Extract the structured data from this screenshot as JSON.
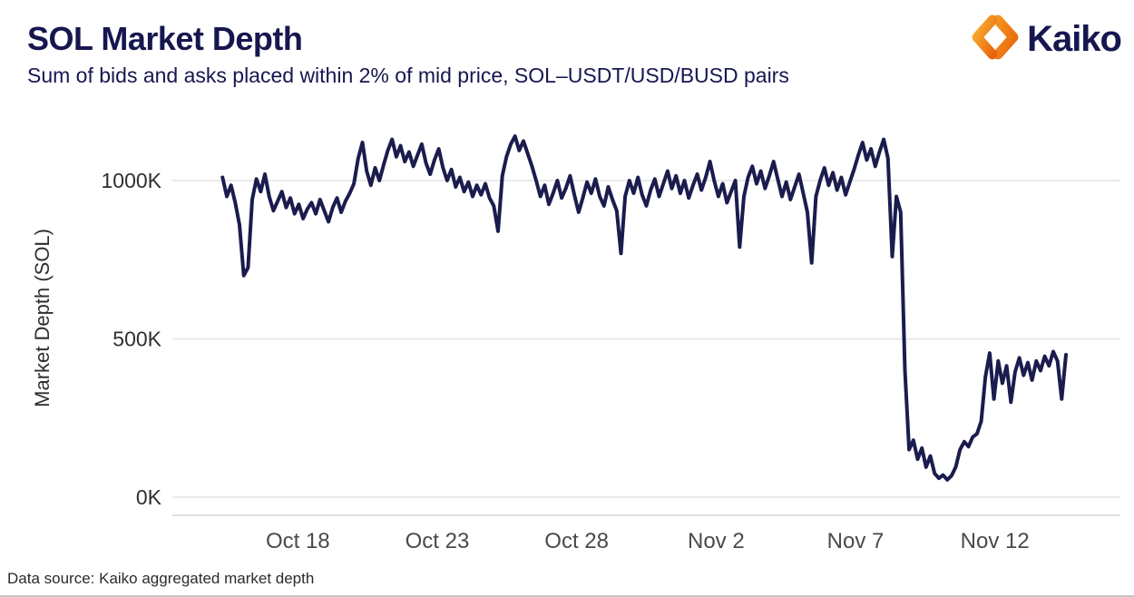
{
  "header": {
    "title": "SOL Market Depth",
    "subtitle": "Sum of bids and asks placed within 2% of mid price, SOL–USDT/USD/BUSD pairs",
    "brand": "Kaiko"
  },
  "footer": {
    "source": "Data source: Kaiko aggregated market depth"
  },
  "colors": {
    "line": "#1b1c4e",
    "title_navy": "#16174f",
    "grid": "#e4e4e4",
    "brand_orange_light": "#f9a21b",
    "brand_orange_dark": "#e8650d"
  },
  "chart_data": {
    "type": "line",
    "title": "SOL Market Depth",
    "subtitle": "Sum of bids and asks placed within 2% of mid price, SOL-USDT/USD/BUSD pairs",
    "ylabel": "Market Depth (SOL)",
    "xlabel": "",
    "unit": "K SOL",
    "grid": "horizontal-only",
    "legend": "none",
    "y_domain": [
      0,
      1200
    ],
    "x_domain_days": [
      -1.5,
      32.5
    ],
    "x_day0": "Oct 15",
    "y_ticks": [
      {
        "value": 0,
        "label": "0K"
      },
      {
        "value": 500,
        "label": "500K"
      },
      {
        "value": 1000,
        "label": "1000K"
      }
    ],
    "x_ticks": [
      {
        "day": 3,
        "label": "Oct 18"
      },
      {
        "day": 8,
        "label": "Oct 23"
      },
      {
        "day": 13,
        "label": "Oct 28"
      },
      {
        "day": 18,
        "label": "Nov 2"
      },
      {
        "day": 23,
        "label": "Nov 7"
      },
      {
        "day": 28,
        "label": "Nov 12"
      }
    ],
    "x_start_day": 0.3,
    "x_step_day": 0.152,
    "values_k": [
      1010,
      950,
      985,
      930,
      860,
      700,
      725,
      940,
      1005,
      965,
      1020,
      950,
      905,
      935,
      965,
      915,
      945,
      895,
      925,
      880,
      910,
      930,
      895,
      940,
      905,
      870,
      915,
      945,
      900,
      935,
      960,
      990,
      1070,
      1120,
      1030,
      985,
      1040,
      1000,
      1050,
      1095,
      1130,
      1075,
      1110,
      1060,
      1090,
      1045,
      1080,
      1115,
      1055,
      1020,
      1065,
      1100,
      1040,
      1000,
      1035,
      980,
      1010,
      965,
      995,
      950,
      985,
      955,
      990,
      945,
      920,
      840,
      1015,
      1075,
      1115,
      1140,
      1095,
      1125,
      1085,
      1045,
      1000,
      950,
      985,
      925,
      960,
      1000,
      945,
      975,
      1015,
      955,
      900,
      945,
      995,
      960,
      1005,
      950,
      920,
      980,
      940,
      905,
      770,
      950,
      1000,
      960,
      1010,
      955,
      920,
      970,
      1005,
      950,
      990,
      1030,
      975,
      1015,
      960,
      1000,
      945,
      985,
      1020,
      970,
      1010,
      1060,
      1000,
      950,
      990,
      930,
      965,
      1000,
      790,
      950,
      1010,
      1045,
      990,
      1030,
      975,
      1015,
      1060,
      1005,
      950,
      995,
      940,
      980,
      1020,
      960,
      900,
      740,
      950,
      1000,
      1040,
      985,
      1025,
      970,
      1010,
      955,
      995,
      1035,
      1080,
      1120,
      1065,
      1100,
      1045,
      1090,
      1130,
      1070,
      760,
      950,
      900,
      400,
      150,
      180,
      120,
      155,
      95,
      130,
      75,
      60,
      70,
      55,
      68,
      95,
      150,
      175,
      160,
      190,
      200,
      240,
      380,
      455,
      310,
      430,
      360,
      415,
      300,
      395,
      440,
      385,
      425,
      370,
      430,
      400,
      445,
      415,
      460,
      430,
      310,
      450
    ]
  }
}
